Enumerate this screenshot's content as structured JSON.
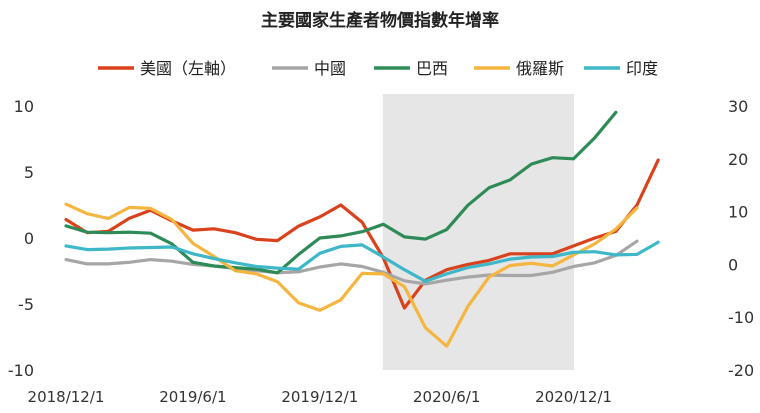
{
  "chart_data": {
    "type": "line",
    "title": "主要國家生產者物價指數年增率",
    "x_ticks": [
      "2018/12/1",
      "2019/6/1",
      "2019/12/1",
      "2020/6/1",
      "2020/12/1"
    ],
    "y_left": {
      "ylim": [
        -10,
        10
      ],
      "ticks": [
        "10",
        "5",
        "0",
        "-5",
        "-10"
      ]
    },
    "y_right": {
      "ylim": [
        -20,
        30
      ],
      "ticks": [
        "30",
        "20",
        "10",
        "0",
        "-10",
        "-20"
      ]
    },
    "shaded_region": {
      "from_month_index": 15,
      "to_month_index": 24,
      "color": "#e6e6e6"
    },
    "grid": false,
    "legend_position": "top",
    "series": [
      {
        "name": "美國（左軸）",
        "axis": "left",
        "color": "#d9421c",
        "values": [
          1.4,
          0.4,
          0.5,
          1.5,
          2.1,
          1.3,
          0.6,
          0.7,
          0.4,
          -0.1,
          -0.2,
          0.9,
          1.6,
          2.5,
          1.2,
          -1.5,
          -5.3,
          -3.2,
          -2.4,
          -2.0,
          -1.7,
          -1.2,
          -1.2,
          -1.2,
          -0.6,
          0.0,
          0.5,
          2.5,
          5.9
        ]
      },
      {
        "name": "中國",
        "axis": "right",
        "color": "#a6a6a6",
        "values": [
          0.9,
          0.1,
          0.1,
          0.4,
          0.9,
          0.6,
          0.0,
          -0.3,
          -0.8,
          -1.2,
          -1.6,
          -1.4,
          -0.5,
          0.1,
          -0.4,
          -1.5,
          -3.1,
          -3.7,
          -3.0,
          -2.4,
          -2.0,
          -2.1,
          -2.1,
          -1.5,
          -0.4,
          0.3,
          1.7,
          4.4
        ]
      },
      {
        "name": "巴西",
        "axis": "right",
        "color": "#2e8b57",
        "values": [
          7.3,
          6.1,
          6.0,
          6.1,
          5.9,
          3.9,
          0.4,
          -0.3,
          -0.6,
          -0.9,
          -1.6,
          1.9,
          5.0,
          5.4,
          6.2,
          7.6,
          5.2,
          4.8,
          6.6,
          11.2,
          14.5,
          16.0,
          19.0,
          20.2,
          20.0,
          24.0,
          28.8
        ]
      },
      {
        "name": "俄羅斯",
        "axis": "right",
        "color": "#f5b53f",
        "values": [
          11.4,
          9.6,
          8.7,
          10.8,
          10.6,
          8.5,
          4.0,
          1.5,
          -1.2,
          -1.8,
          -3.3,
          -7.3,
          -8.7,
          -6.7,
          -1.7,
          -1.8,
          -4.2,
          -12.0,
          -15.5,
          -8.0,
          -2.4,
          -0.2,
          0.2,
          -0.3,
          1.8,
          3.9,
          6.7,
          10.7
        ]
      },
      {
        "name": "印度",
        "axis": "right",
        "color": "#3eb7c9",
        "values": [
          3.5,
          2.8,
          2.9,
          3.1,
          3.2,
          3.3,
          2.0,
          1.1,
          0.3,
          -0.4,
          -0.7,
          -0.9,
          2.1,
          3.4,
          3.7,
          1.4,
          -1.0,
          -3.2,
          -1.8,
          -0.6,
          0.1,
          1.0,
          1.4,
          1.5,
          2.3,
          2.4,
          1.8,
          1.9,
          4.2
        ]
      }
    ]
  }
}
